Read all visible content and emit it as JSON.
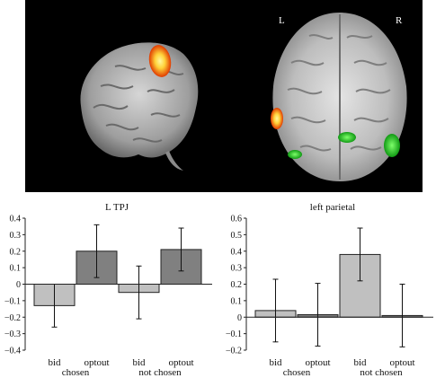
{
  "brain_image": {
    "left_label": "L",
    "right_label": "R",
    "colors": {
      "activation_hot": "#ff6a00",
      "activation_core": "#ffe84a",
      "activation_green": "#2ad42a",
      "background": "#000000"
    }
  },
  "chart_data": [
    {
      "type": "bar",
      "title": "L TPJ",
      "categories": [
        "bid",
        "optout",
        "bid",
        "optout"
      ],
      "groups": [
        {
          "label": "chosen",
          "span": [
            0,
            1
          ]
        },
        {
          "label": "not chosen",
          "span": [
            2,
            3
          ]
        }
      ],
      "values": [
        -0.13,
        0.2,
        -0.05,
        0.21
      ],
      "errors": [
        0.13,
        0.16,
        0.16,
        0.13
      ],
      "colors": [
        "#c0c0c0",
        "#808080",
        "#c0c0c0",
        "#808080"
      ],
      "ylim": [
        -0.4,
        0.4
      ],
      "yticks": [
        "0.4",
        "0.3",
        "0.2",
        "0.1",
        "0",
        "−0.1",
        "−0.2",
        "−0.3",
        "−0.4"
      ],
      "ytick_values": [
        0.4,
        0.3,
        0.2,
        0.1,
        0,
        -0.1,
        -0.2,
        -0.3,
        -0.4
      ],
      "xlabel": "",
      "ylabel": ""
    },
    {
      "type": "bar",
      "title": "left parietal",
      "categories": [
        "bid",
        "optout",
        "bid",
        "optout"
      ],
      "groups": [
        {
          "label": "chosen",
          "span": [
            0,
            1
          ]
        },
        {
          "label": "not chosen",
          "span": [
            2,
            3
          ]
        }
      ],
      "values": [
        0.04,
        0.015,
        0.38,
        0.01
      ],
      "errors": [
        0.19,
        0.19,
        0.16,
        0.19
      ],
      "colors": [
        "#c0c0c0",
        "#808080",
        "#c0c0c0",
        "#808080"
      ],
      "ylim": [
        -0.2,
        0.6
      ],
      "yticks": [
        "0.6",
        "0.5",
        "0.4",
        "0.3",
        "0.2",
        "0.1",
        "0",
        "−0.1",
        "−0.2"
      ],
      "ytick_values": [
        0.6,
        0.5,
        0.4,
        0.3,
        0.2,
        0.1,
        0,
        -0.1,
        -0.2
      ],
      "xlabel": "",
      "ylabel": ""
    }
  ]
}
